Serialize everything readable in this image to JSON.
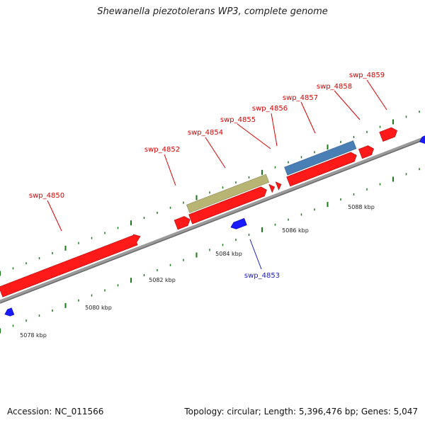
{
  "title": "Shewanella piezotolerans WP3, complete genome",
  "footer": {
    "accession": "Accession: NC_011566",
    "summary": "Topology: circular; Length: 5,396,476 bp; Genes: 5,047"
  },
  "colors": {
    "forward_gene": "#ff1a1a",
    "reverse_gene": "#1a1aff",
    "orange_gene": "#ff9a00",
    "olive_feature": "#b8b474",
    "steel_feature": "#4a7fb5",
    "backbone": "#888888",
    "tick": "#1a7a1a",
    "forward_label": "#dd0000",
    "reverse_label": "#1a1acc"
  },
  "scale_labels": [
    "5078 kbp",
    "5080 kbp",
    "5082 kbp",
    "5084 kbp",
    "5086 kbp",
    "5088 kbp"
  ],
  "gene_labels": [
    {
      "id": "swp_4850",
      "strand": "forward"
    },
    {
      "id": "swp_4852",
      "strand": "forward"
    },
    {
      "id": "swp_4853",
      "strand": "reverse"
    },
    {
      "id": "swp_4854",
      "strand": "forward"
    },
    {
      "id": "swp_4855",
      "strand": "forward"
    },
    {
      "id": "swp_4856",
      "strand": "forward"
    },
    {
      "id": "swp_4857",
      "strand": "forward"
    },
    {
      "id": "swp_4858",
      "strand": "forward"
    },
    {
      "id": "swp_4859",
      "strand": "forward"
    }
  ]
}
